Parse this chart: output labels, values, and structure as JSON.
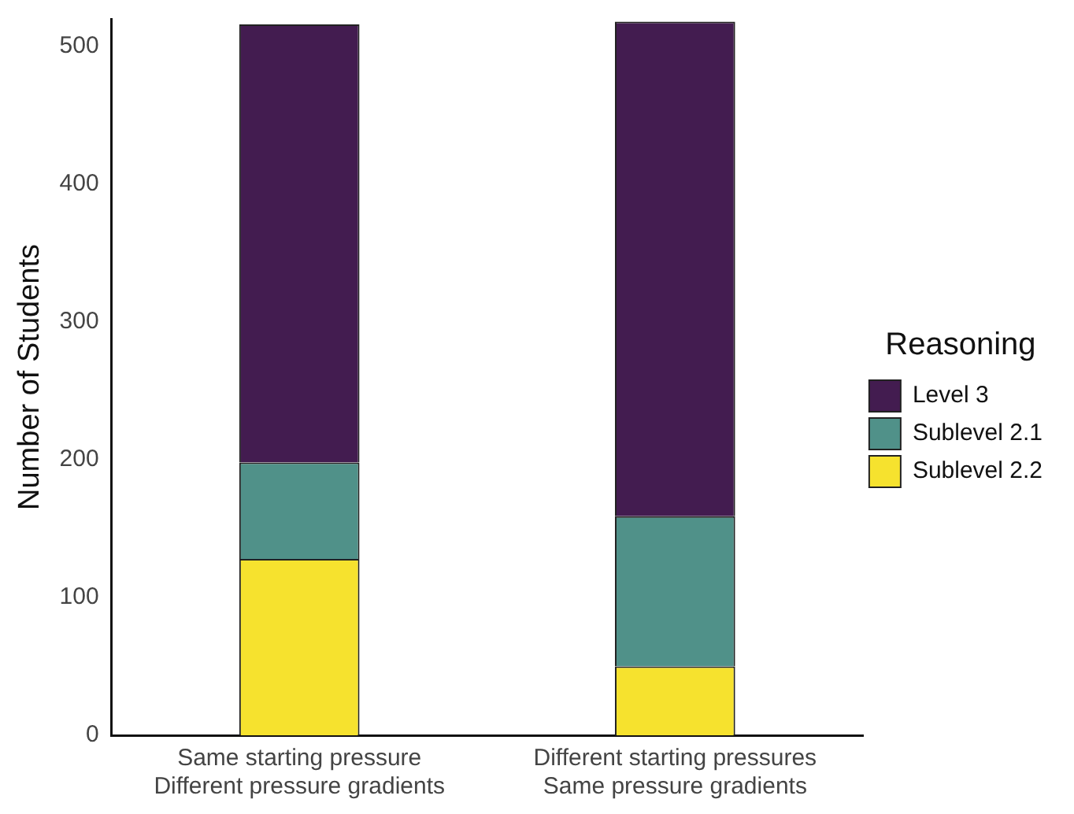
{
  "chart_data": {
    "type": "bar",
    "stacked": true,
    "ylabel": "Number of Students",
    "legend_title": "Reasoning",
    "legend": "right",
    "grid": false,
    "categories": [
      "Same starting pressure\nDifferent pressure gradients",
      "Different starting pressures\nSame pressure gradients"
    ],
    "series": [
      {
        "name": "Sublevel 2.2",
        "color": "#f6e22e",
        "values": [
          128,
          50
        ]
      },
      {
        "name": "Sublevel 2.1",
        "color": "#509189",
        "values": [
          70,
          109
        ]
      },
      {
        "name": "Level 3",
        "color": "#431c50",
        "values": [
          318,
          359
        ]
      }
    ],
    "ylim": [
      0,
      520
    ],
    "yticks": [
      0,
      100,
      200,
      300,
      400,
      500
    ]
  }
}
